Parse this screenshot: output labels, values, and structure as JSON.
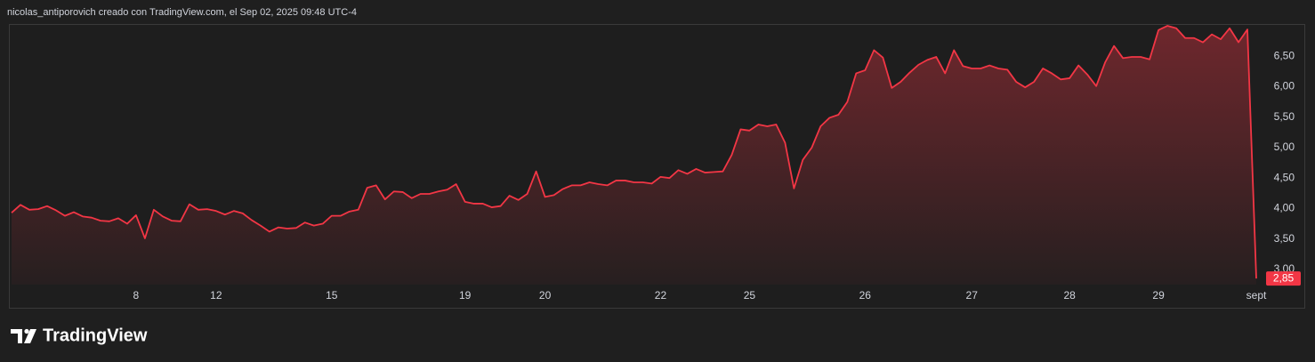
{
  "header": {
    "attribution": "nicolas_antiporovich creado con TradingView.com, el Sep 02, 2025 09:48 UTC-4"
  },
  "footer": {
    "brand": "TradingView"
  },
  "chart_data": {
    "type": "area",
    "categories": [
      null,
      null,
      null,
      null,
      null,
      null,
      null,
      null,
      null,
      null,
      null,
      null,
      null,
      null,
      "8",
      null,
      null,
      null,
      null,
      null,
      null,
      null,
      null,
      "12",
      null,
      null,
      null,
      null,
      null,
      null,
      null,
      null,
      null,
      null,
      null,
      null,
      "15",
      null,
      null,
      null,
      null,
      null,
      null,
      null,
      null,
      null,
      null,
      null,
      null,
      null,
      null,
      "19",
      null,
      null,
      null,
      null,
      null,
      null,
      null,
      null,
      "20",
      null,
      null,
      null,
      null,
      null,
      null,
      null,
      null,
      null,
      null,
      null,
      null,
      "22",
      null,
      null,
      null,
      null,
      null,
      null,
      null,
      null,
      null,
      "25",
      null,
      null,
      null,
      null,
      null,
      null,
      null,
      null,
      null,
      null,
      null,
      null,
      "26",
      null,
      null,
      null,
      null,
      null,
      null,
      null,
      null,
      null,
      null,
      null,
      "27",
      null,
      null,
      null,
      null,
      null,
      null,
      null,
      null,
      null,
      null,
      "28",
      null,
      null,
      null,
      null,
      null,
      null,
      null,
      null,
      null,
      "29",
      null,
      null,
      null,
      null,
      null,
      null,
      null,
      null,
      null,
      null,
      "sept"
    ],
    "values": [
      3.93,
      4.06,
      3.98,
      3.99,
      4.04,
      3.97,
      3.88,
      3.94,
      3.87,
      3.85,
      3.8,
      3.79,
      3.84,
      3.75,
      3.89,
      3.51,
      3.98,
      3.87,
      3.8,
      3.79,
      4.07,
      3.98,
      3.99,
      3.96,
      3.9,
      3.96,
      3.92,
      3.81,
      3.72,
      3.62,
      3.69,
      3.67,
      3.68,
      3.77,
      3.72,
      3.75,
      3.88,
      3.88,
      3.95,
      3.98,
      4.34,
      4.38,
      4.15,
      4.28,
      4.27,
      4.17,
      4.24,
      4.24,
      4.28,
      4.31,
      4.4,
      4.11,
      4.08,
      4.08,
      4.02,
      4.04,
      4.21,
      4.14,
      4.24,
      4.61,
      4.19,
      4.22,
      4.32,
      4.38,
      4.38,
      4.43,
      4.4,
      4.38,
      4.46,
      4.46,
      4.43,
      4.43,
      4.41,
      4.52,
      4.5,
      4.63,
      4.57,
      4.65,
      4.59,
      4.6,
      4.61,
      4.88,
      5.3,
      5.28,
      5.38,
      5.35,
      5.38,
      5.08,
      4.33,
      4.8,
      5.0,
      5.35,
      5.49,
      5.54,
      5.75,
      6.22,
      6.27,
      6.6,
      6.48,
      5.98,
      6.08,
      6.23,
      6.36,
      6.44,
      6.49,
      6.22,
      6.6,
      6.34,
      6.3,
      6.3,
      6.35,
      6.3,
      6.28,
      6.08,
      5.99,
      6.08,
      6.3,
      6.22,
      6.12,
      6.14,
      6.35,
      6.2,
      6.01,
      6.4,
      6.67,
      6.47,
      6.49,
      6.49,
      6.45,
      6.93,
      7.0,
      6.96,
      6.8,
      6.8,
      6.73,
      6.86,
      6.78,
      6.96,
      6.73,
      6.94,
      2.85
    ],
    "last_label": "2,85",
    "color": "#f23645",
    "ylim": [
      2.75,
      7.03
    ],
    "yticks": [
      {
        "value": 3,
        "label": "3,00"
      },
      {
        "value": 3.5,
        "label": "3,50"
      },
      {
        "value": 4,
        "label": "4,00"
      },
      {
        "value": 4.5,
        "label": "4,50"
      },
      {
        "value": 5,
        "label": "5,00"
      },
      {
        "value": 5.5,
        "label": "5,50"
      },
      {
        "value": 6,
        "label": "6,00"
      },
      {
        "value": 6.5,
        "label": "6,50"
      }
    ],
    "grid": false
  }
}
